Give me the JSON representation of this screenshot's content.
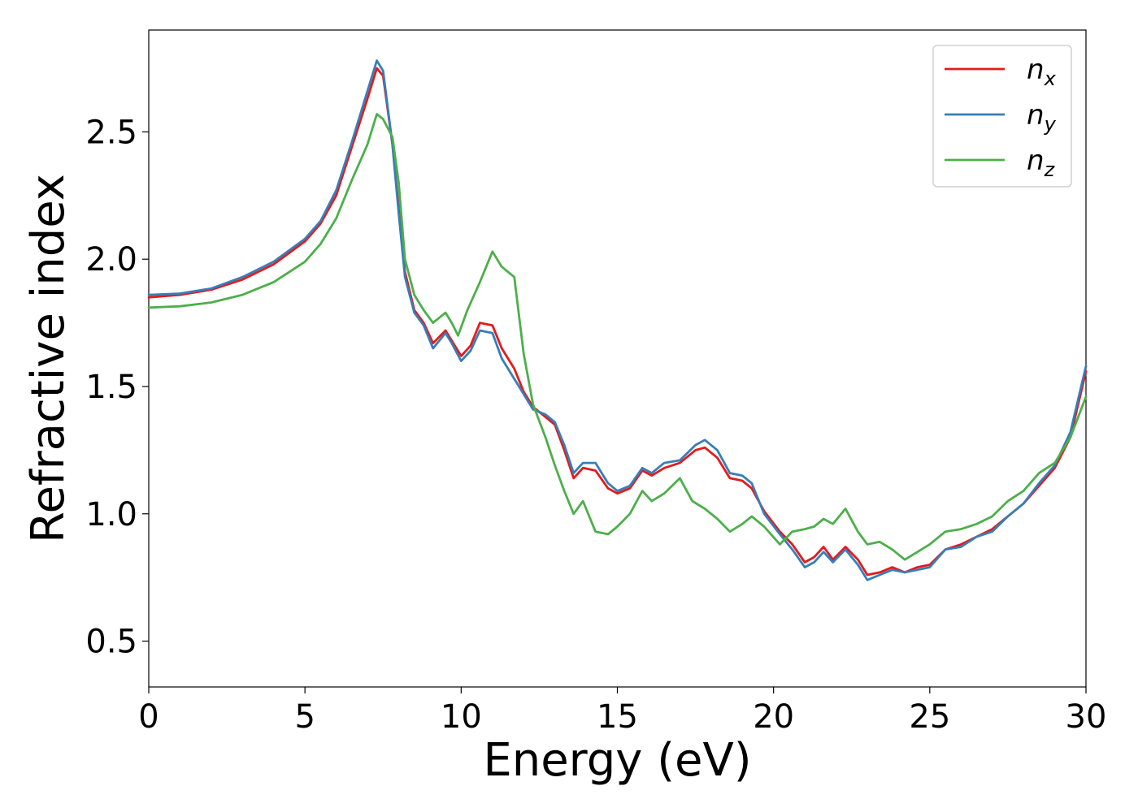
{
  "chart_data": {
    "type": "line",
    "title": "",
    "xlabel": "Energy (eV)",
    "ylabel": "Refractive index",
    "xlim": [
      0,
      30
    ],
    "ylim": [
      0.32,
      2.9
    ],
    "xticks": [
      "0",
      "5",
      "10",
      "15",
      "20",
      "25",
      "30"
    ],
    "yticks": [
      "0.5",
      "1.0",
      "1.5",
      "2.0",
      "2.5"
    ],
    "grid": false,
    "legend_position": "top-right",
    "series": [
      {
        "name": "n_x",
        "label_base": "n",
        "label_sub": "x",
        "color": "#e41a1c",
        "points": [
          [
            0,
            1.85
          ],
          [
            1,
            1.86
          ],
          [
            2,
            1.88
          ],
          [
            3,
            1.92
          ],
          [
            4,
            1.98
          ],
          [
            5,
            2.07
          ],
          [
            5.5,
            2.14
          ],
          [
            6,
            2.25
          ],
          [
            6.5,
            2.44
          ],
          [
            7,
            2.63
          ],
          [
            7.3,
            2.75
          ],
          [
            7.5,
            2.72
          ],
          [
            7.8,
            2.45
          ],
          [
            8,
            2.2
          ],
          [
            8.2,
            1.95
          ],
          [
            8.5,
            1.8
          ],
          [
            8.8,
            1.75
          ],
          [
            9.1,
            1.67
          ],
          [
            9.5,
            1.72
          ],
          [
            9.7,
            1.68
          ],
          [
            10,
            1.62
          ],
          [
            10.3,
            1.66
          ],
          [
            10.6,
            1.75
          ],
          [
            11,
            1.74
          ],
          [
            11.3,
            1.65
          ],
          [
            11.7,
            1.57
          ],
          [
            12,
            1.48
          ],
          [
            12.3,
            1.42
          ],
          [
            12.7,
            1.38
          ],
          [
            13,
            1.35
          ],
          [
            13.3,
            1.25
          ],
          [
            13.6,
            1.14
          ],
          [
            13.9,
            1.18
          ],
          [
            14.3,
            1.17
          ],
          [
            14.7,
            1.1
          ],
          [
            15,
            1.08
          ],
          [
            15.4,
            1.1
          ],
          [
            15.8,
            1.17
          ],
          [
            16.1,
            1.15
          ],
          [
            16.5,
            1.18
          ],
          [
            17,
            1.2
          ],
          [
            17.5,
            1.25
          ],
          [
            17.8,
            1.26
          ],
          [
            18.2,
            1.22
          ],
          [
            18.6,
            1.14
          ],
          [
            19,
            1.13
          ],
          [
            19.3,
            1.1
          ],
          [
            19.7,
            1.01
          ],
          [
            20.2,
            0.93
          ],
          [
            20.6,
            0.88
          ],
          [
            21,
            0.81
          ],
          [
            21.3,
            0.83
          ],
          [
            21.6,
            0.87
          ],
          [
            21.9,
            0.82
          ],
          [
            22.3,
            0.87
          ],
          [
            22.7,
            0.82
          ],
          [
            23,
            0.76
          ],
          [
            23.4,
            0.77
          ],
          [
            23.8,
            0.79
          ],
          [
            24.2,
            0.77
          ],
          [
            24.6,
            0.79
          ],
          [
            25,
            0.8
          ],
          [
            25.5,
            0.86
          ],
          [
            26,
            0.88
          ],
          [
            26.5,
            0.91
          ],
          [
            27,
            0.94
          ],
          [
            27.5,
            0.99
          ],
          [
            28,
            1.04
          ],
          [
            28.5,
            1.11
          ],
          [
            29,
            1.18
          ],
          [
            29.5,
            1.3
          ],
          [
            30,
            1.56
          ]
        ]
      },
      {
        "name": "n_y",
        "label_base": "n",
        "label_sub": "y",
        "color": "#377eb8",
        "points": [
          [
            0,
            1.86
          ],
          [
            1,
            1.865
          ],
          [
            2,
            1.885
          ],
          [
            3,
            1.93
          ],
          [
            4,
            1.99
          ],
          [
            5,
            2.08
          ],
          [
            5.5,
            2.15
          ],
          [
            6,
            2.27
          ],
          [
            6.5,
            2.46
          ],
          [
            7,
            2.66
          ],
          [
            7.3,
            2.78
          ],
          [
            7.5,
            2.74
          ],
          [
            7.8,
            2.45
          ],
          [
            8,
            2.18
          ],
          [
            8.2,
            1.93
          ],
          [
            8.5,
            1.79
          ],
          [
            8.8,
            1.74
          ],
          [
            9.1,
            1.65
          ],
          [
            9.5,
            1.71
          ],
          [
            9.7,
            1.67
          ],
          [
            10,
            1.6
          ],
          [
            10.3,
            1.64
          ],
          [
            10.6,
            1.72
          ],
          [
            11,
            1.71
          ],
          [
            11.3,
            1.61
          ],
          [
            11.7,
            1.53
          ],
          [
            12,
            1.47
          ],
          [
            12.3,
            1.41
          ],
          [
            12.7,
            1.39
          ],
          [
            13,
            1.36
          ],
          [
            13.3,
            1.27
          ],
          [
            13.6,
            1.16
          ],
          [
            13.9,
            1.2
          ],
          [
            14.3,
            1.2
          ],
          [
            14.7,
            1.12
          ],
          [
            15,
            1.09
          ],
          [
            15.4,
            1.11
          ],
          [
            15.8,
            1.18
          ],
          [
            16.1,
            1.16
          ],
          [
            16.5,
            1.2
          ],
          [
            17,
            1.21
          ],
          [
            17.5,
            1.27
          ],
          [
            17.8,
            1.29
          ],
          [
            18.2,
            1.25
          ],
          [
            18.6,
            1.16
          ],
          [
            19,
            1.15
          ],
          [
            19.3,
            1.12
          ],
          [
            19.7,
            1.0
          ],
          [
            20.2,
            0.92
          ],
          [
            20.6,
            0.86
          ],
          [
            21,
            0.79
          ],
          [
            21.3,
            0.81
          ],
          [
            21.6,
            0.85
          ],
          [
            21.9,
            0.81
          ],
          [
            22.3,
            0.86
          ],
          [
            22.7,
            0.8
          ],
          [
            23,
            0.74
          ],
          [
            23.4,
            0.76
          ],
          [
            23.8,
            0.78
          ],
          [
            24.2,
            0.77
          ],
          [
            24.6,
            0.78
          ],
          [
            25,
            0.79
          ],
          [
            25.5,
            0.86
          ],
          [
            26,
            0.87
          ],
          [
            26.5,
            0.91
          ],
          [
            27,
            0.93
          ],
          [
            27.5,
            0.99
          ],
          [
            28,
            1.04
          ],
          [
            28.5,
            1.12
          ],
          [
            29,
            1.19
          ],
          [
            29.5,
            1.32
          ],
          [
            30,
            1.58
          ]
        ]
      },
      {
        "name": "n_z",
        "label_base": "n",
        "label_sub": "z",
        "color": "#4daf4a",
        "points": [
          [
            0,
            1.81
          ],
          [
            1,
            1.815
          ],
          [
            2,
            1.83
          ],
          [
            3,
            1.86
          ],
          [
            4,
            1.91
          ],
          [
            5,
            1.99
          ],
          [
            5.5,
            2.06
          ],
          [
            6,
            2.16
          ],
          [
            6.5,
            2.31
          ],
          [
            7,
            2.45
          ],
          [
            7.3,
            2.57
          ],
          [
            7.5,
            2.55
          ],
          [
            7.8,
            2.48
          ],
          [
            8,
            2.3
          ],
          [
            8.2,
            2.0
          ],
          [
            8.5,
            1.86
          ],
          [
            8.8,
            1.8
          ],
          [
            9.1,
            1.75
          ],
          [
            9.5,
            1.79
          ],
          [
            9.7,
            1.75
          ],
          [
            9.9,
            1.7
          ],
          [
            10.2,
            1.8
          ],
          [
            10.6,
            1.91
          ],
          [
            11,
            2.03
          ],
          [
            11.3,
            1.97
          ],
          [
            11.7,
            1.93
          ],
          [
            12,
            1.63
          ],
          [
            12.3,
            1.43
          ],
          [
            12.7,
            1.3
          ],
          [
            13,
            1.19
          ],
          [
            13.3,
            1.09
          ],
          [
            13.6,
            1.0
          ],
          [
            13.9,
            1.05
          ],
          [
            14.3,
            0.93
          ],
          [
            14.7,
            0.92
          ],
          [
            15,
            0.95
          ],
          [
            15.4,
            1.0
          ],
          [
            15.8,
            1.09
          ],
          [
            16.1,
            1.05
          ],
          [
            16.5,
            1.08
          ],
          [
            17,
            1.14
          ],
          [
            17.4,
            1.05
          ],
          [
            17.8,
            1.02
          ],
          [
            18.2,
            0.98
          ],
          [
            18.6,
            0.93
          ],
          [
            19,
            0.96
          ],
          [
            19.3,
            0.99
          ],
          [
            19.7,
            0.95
          ],
          [
            20.2,
            0.88
          ],
          [
            20.6,
            0.93
          ],
          [
            21,
            0.94
          ],
          [
            21.3,
            0.95
          ],
          [
            21.6,
            0.98
          ],
          [
            21.9,
            0.96
          ],
          [
            22.3,
            1.02
          ],
          [
            22.7,
            0.93
          ],
          [
            23,
            0.88
          ],
          [
            23.4,
            0.89
          ],
          [
            23.8,
            0.86
          ],
          [
            24.2,
            0.82
          ],
          [
            24.6,
            0.85
          ],
          [
            25,
            0.88
          ],
          [
            25.5,
            0.93
          ],
          [
            26,
            0.94
          ],
          [
            26.5,
            0.96
          ],
          [
            27,
            0.99
          ],
          [
            27.5,
            1.05
          ],
          [
            28,
            1.09
          ],
          [
            28.5,
            1.16
          ],
          [
            29,
            1.2
          ],
          [
            29.5,
            1.3
          ],
          [
            30,
            1.46
          ]
        ]
      }
    ]
  }
}
